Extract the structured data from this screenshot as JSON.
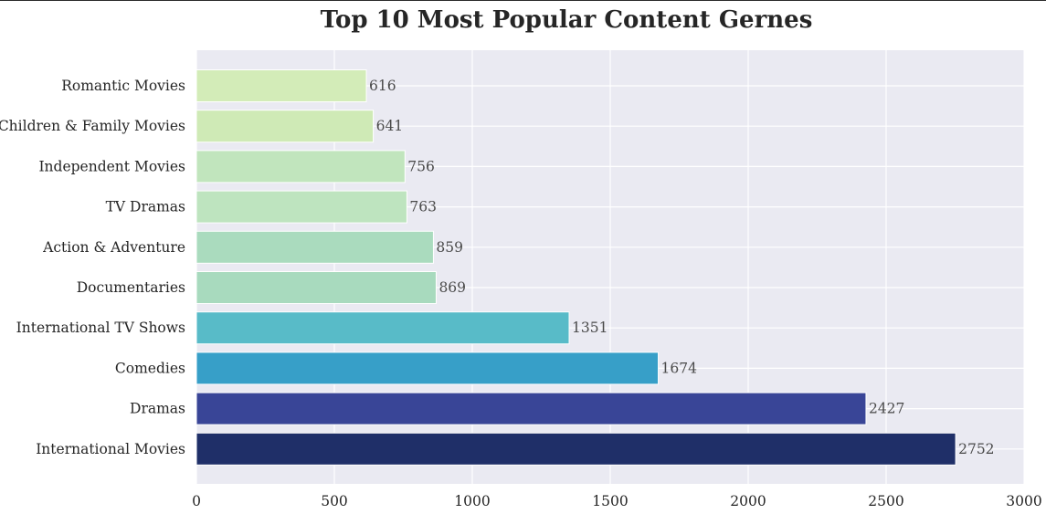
{
  "chart_data": {
    "type": "bar",
    "orientation": "horizontal",
    "title": "Top 10 Most Popular Content Gernes",
    "xlabel": "",
    "ylabel": "",
    "xlim": [
      0,
      3000
    ],
    "xticks": [
      0,
      500,
      1000,
      1500,
      2000,
      2500,
      3000
    ],
    "grid": true,
    "categories": [
      "Romantic Movies",
      "Children & Family Movies",
      "Independent Movies",
      "TV Dramas",
      "Action & Adventure",
      "Documentaries",
      "International TV Shows",
      "Comedies",
      "Dramas",
      "International Movies"
    ],
    "values": [
      616,
      641,
      756,
      763,
      859,
      869,
      1351,
      1674,
      2427,
      2752
    ],
    "colors": [
      "#d3ecb8",
      "#cfeab6",
      "#c1e5bd",
      "#bee4bf",
      "#aadbbe",
      "#a8dabe",
      "#58bbc8",
      "#379fc8",
      "#394597",
      "#1f2f68"
    ],
    "background_color": "#eaeaf2",
    "grid_color": "#ffffff"
  }
}
